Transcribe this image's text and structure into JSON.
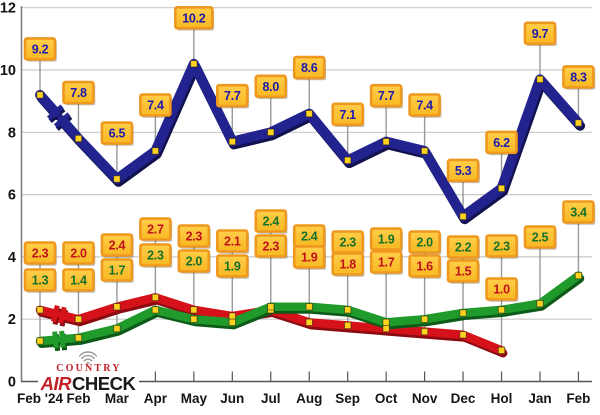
{
  "chart_data": {
    "type": "line",
    "title": "",
    "categories": [
      "Feb '24",
      "Feb",
      "Mar",
      "Apr",
      "May",
      "Jun",
      "Jul",
      "Aug",
      "Sep",
      "Oct",
      "Nov",
      "Dec",
      "Hol",
      "Jan",
      "Feb"
    ],
    "series": [
      {
        "name": "blue",
        "values": [
          9.2,
          7.8,
          6.5,
          7.4,
          10.2,
          7.7,
          8.0,
          8.6,
          7.1,
          7.7,
          7.4,
          5.3,
          6.2,
          9.7,
          8.3
        ]
      },
      {
        "name": "red",
        "values": [
          2.3,
          2.0,
          2.4,
          2.7,
          2.3,
          2.1,
          2.3,
          1.9,
          1.8,
          1.7,
          1.6,
          1.5,
          1.0,
          null,
          null
        ]
      },
      {
        "name": "green",
        "values": [
          1.3,
          1.4,
          1.7,
          2.3,
          2.0,
          1.9,
          2.4,
          2.4,
          2.3,
          1.9,
          2.0,
          2.2,
          2.3,
          2.5,
          3.4
        ]
      }
    ],
    "ylim": [
      0,
      12
    ],
    "yticks": [
      0,
      2,
      4,
      6,
      8,
      10,
      12
    ],
    "grid": true,
    "legend_position": "none",
    "break_after_first_point": true,
    "value_labels": "gold boxes above every point"
  },
  "branding": {
    "country": "COUNTRY",
    "air": "AIR",
    "check": "CHECK"
  },
  "colors": {
    "background": "#FFFFFF",
    "grid": "#C9C9C9",
    "axis": "#808080",
    "baseline": "#555555",
    "tick": "#555555",
    "connector": "#9A9A9A",
    "box_fill_top": "#FFCE49",
    "box_fill_bottom": "#F8B822",
    "box_border": "#EF981F",
    "box_shadow": "rgba(0,0,0,0.25)",
    "marker": "#FFD21F",
    "marker_edge": "rgba(20,20,20,0.55)",
    "blue_line": "#23238F",
    "blue_shadow": "#12124F",
    "blue_label": "#1B1BB0",
    "red_line": "#D5121A",
    "red_shadow": "#8C0B10",
    "red_label": "#C0121B",
    "green_line": "#209A2B",
    "green_shadow": "#0D5A18",
    "green_label": "#15702A",
    "logo_red": "#C22127",
    "logo_black": "#1A1A1A",
    "logo_waves": "#9C9C9C"
  }
}
